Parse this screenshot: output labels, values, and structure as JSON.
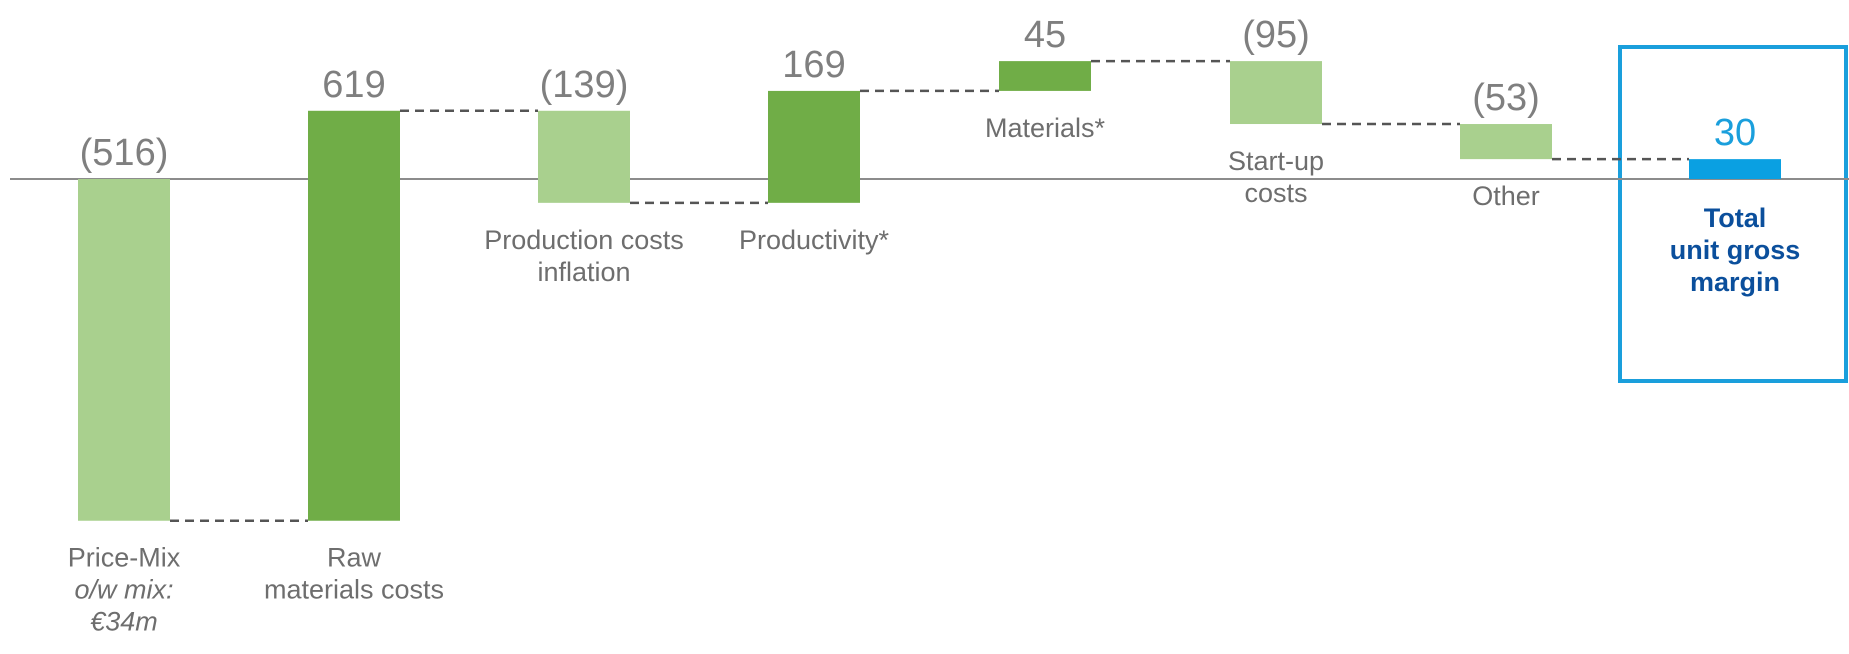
{
  "chart_data": {
    "type": "bar",
    "subtype": "waterfall",
    "title": "",
    "xlabel": "",
    "ylabel": "",
    "categories": [
      [
        "Price-Mix",
        "o/w mix:",
        "€34m"
      ],
      [
        "Raw",
        "materials costs"
      ],
      [
        "Production costs",
        "inflation"
      ],
      [
        "Productivity*"
      ],
      [
        "Materials*"
      ],
      [
        "Start-up",
        "costs"
      ],
      [
        "Other"
      ],
      [
        "Total",
        "unit gross",
        "margin"
      ]
    ],
    "italic_category_lines": [
      [
        0,
        1
      ],
      [
        0,
        2
      ]
    ],
    "values": [
      -516,
      619,
      -139,
      169,
      45,
      -95,
      -53,
      30
    ],
    "value_labels": [
      "(516)",
      "619",
      "(139)",
      "169",
      "45",
      "(95)",
      "(53)",
      "30"
    ],
    "is_total": [
      false,
      false,
      false,
      false,
      false,
      false,
      false,
      true
    ],
    "ylim": [
      -520,
      180
    ],
    "grid": false,
    "legend": "none",
    "colors": {
      "decrease": "#a9d08e",
      "increase": "#70ad47",
      "total": "#0aa0e2",
      "total_label": "#0b4f9c",
      "total_box": "#1a9fdc",
      "baseline": "#8c8c8c",
      "connector": "#555555"
    }
  }
}
